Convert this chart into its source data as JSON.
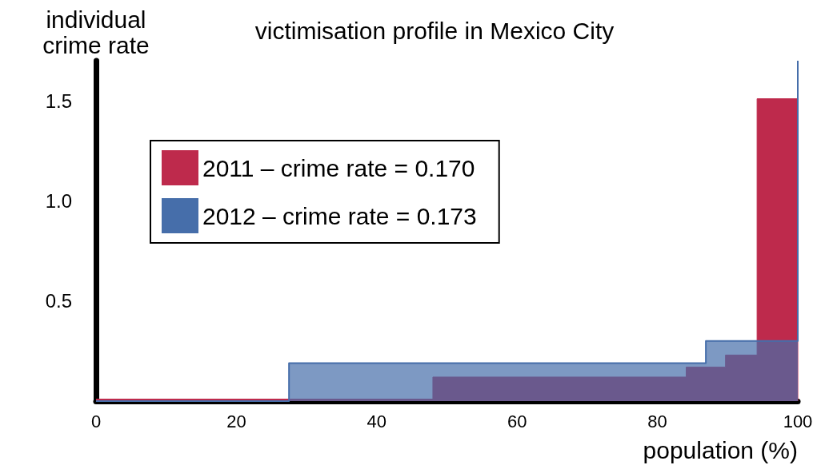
{
  "chart_data": {
    "type": "area",
    "title": "victimisation profile in Mexico City",
    "xlabel": "population (%)",
    "ylabel": "individual\ncrime rate",
    "xlim": [
      0,
      100
    ],
    "xticks": [
      0,
      20,
      40,
      60,
      80,
      100
    ],
    "ylim": [
      0,
      1.7
    ],
    "yticks": [
      0.5,
      {
        "value": 1,
        "label": "1.0"
      },
      1.5
    ],
    "grid": false,
    "legend": "top left",
    "series": [
      {
        "name": "2011 – crime rate = 0.170",
        "color": "#be2a4c",
        "x": [
          0,
          48,
          48,
          84.1,
          84.1,
          89.7,
          89.7,
          94.2,
          94.2,
          100,
          100
        ],
        "values": [
          0.01,
          0.01,
          0.12,
          0.12,
          0.17,
          0.17,
          0.23,
          0.23,
          1.51,
          1.51,
          0
        ]
      },
      {
        "name": "2012 – crime rate = 0.173",
        "color": "#466eaa",
        "x": [
          0,
          27.5,
          27.5,
          86.9,
          86.9,
          100,
          100
        ],
        "values": [
          0,
          0,
          0.19,
          0.19,
          0.3,
          0.3,
          1.7
        ]
      }
    ]
  }
}
